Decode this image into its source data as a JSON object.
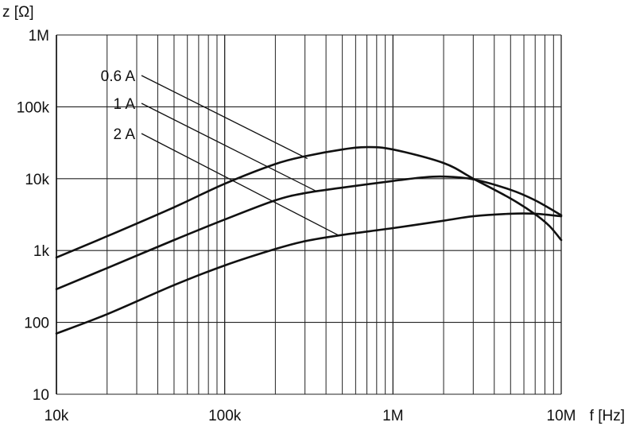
{
  "chart_data": {
    "type": "line",
    "title": "",
    "xlabel": "f [Hz]",
    "ylabel": "z [Ω]",
    "x_scale": "log",
    "y_scale": "log",
    "xlim": [
      10000,
      10000000
    ],
    "ylim": [
      10,
      1000000
    ],
    "grid": true,
    "x_ticks": [
      {
        "value": 10000,
        "label": "10k"
      },
      {
        "value": 100000,
        "label": "100k"
      },
      {
        "value": 1000000,
        "label": "1M"
      },
      {
        "value": 10000000,
        "label": "10M"
      }
    ],
    "y_ticks": [
      {
        "value": 10,
        "label": "10"
      },
      {
        "value": 100,
        "label": "100"
      },
      {
        "value": 1000,
        "label": "1k"
      },
      {
        "value": 10000,
        "label": "10k"
      },
      {
        "value": 100000,
        "label": "100k"
      },
      {
        "value": 1000000,
        "label": "1M"
      }
    ],
    "series": [
      {
        "name": "0.6 A",
        "color": "#111111",
        "label_anchor": {
          "x": 310000,
          "y": 19000
        },
        "points": [
          [
            10000,
            800
          ],
          [
            20000,
            1580
          ],
          [
            50000,
            4000
          ],
          [
            100000,
            8500
          ],
          [
            200000,
            16000
          ],
          [
            300000,
            20500
          ],
          [
            500000,
            25500
          ],
          [
            700000,
            27500
          ],
          [
            1000000,
            25500
          ],
          [
            2000000,
            16500
          ],
          [
            3000000,
            10000
          ],
          [
            5000000,
            5300
          ],
          [
            7000000,
            3200
          ],
          [
            8500000,
            2200
          ],
          [
            10000000,
            1400
          ]
        ]
      },
      {
        "name": "1 A",
        "color": "#111111",
        "label_anchor": {
          "x": 350000,
          "y": 6700
        },
        "points": [
          [
            10000,
            290
          ],
          [
            20000,
            570
          ],
          [
            50000,
            1400
          ],
          [
            100000,
            2700
          ],
          [
            200000,
            5000
          ],
          [
            300000,
            6300
          ],
          [
            500000,
            7500
          ],
          [
            1000000,
            9300
          ],
          [
            1500000,
            10400
          ],
          [
            2000000,
            10700
          ],
          [
            3000000,
            9800
          ],
          [
            5000000,
            7000
          ],
          [
            7000000,
            5000
          ],
          [
            10000000,
            3100
          ]
        ]
      },
      {
        "name": "2 A",
        "color": "#111111",
        "label_anchor": {
          "x": 470000,
          "y": 1650
        },
        "points": [
          [
            10000,
            70
          ],
          [
            20000,
            130
          ],
          [
            50000,
            330
          ],
          [
            100000,
            620
          ],
          [
            200000,
            1050
          ],
          [
            300000,
            1350
          ],
          [
            500000,
            1650
          ],
          [
            1000000,
            2050
          ],
          [
            2000000,
            2600
          ],
          [
            3000000,
            3000
          ],
          [
            5000000,
            3250
          ],
          [
            7000000,
            3250
          ],
          [
            10000000,
            3000
          ]
        ]
      }
    ]
  }
}
